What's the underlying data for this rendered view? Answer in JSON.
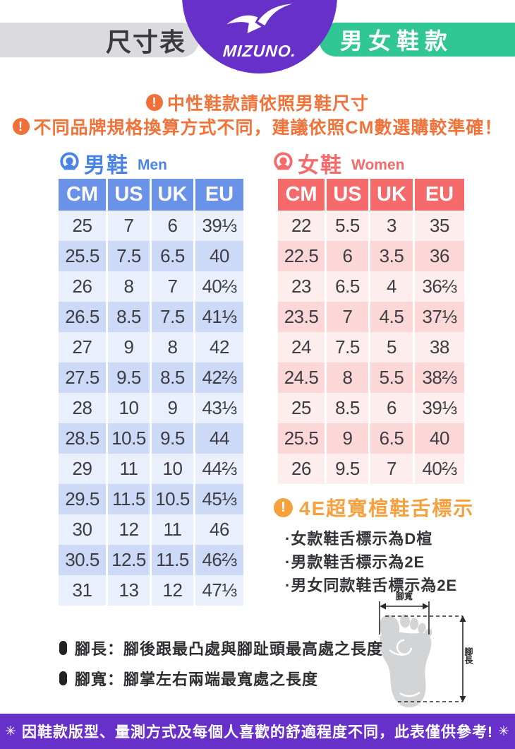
{
  "header": {
    "size_label": "尺寸表",
    "brand": "MIZUNO.",
    "category": "男女鞋款"
  },
  "notices": {
    "icon_glyph": "!",
    "line1": "中性鞋款請依照男鞋尺寸",
    "line2": "不同品牌規格換算方式不同，建議依照CM數選購較準確！"
  },
  "chart_data": [
    {
      "type": "table",
      "title": "男鞋",
      "subtitle": "Men",
      "columns": [
        "CM",
        "US",
        "UK",
        "EU"
      ],
      "rows": [
        [
          "25",
          "7",
          "6",
          "39⅓"
        ],
        [
          "25.5",
          "7.5",
          "6.5",
          "40"
        ],
        [
          "26",
          "8",
          "7",
          "40⅔"
        ],
        [
          "26.5",
          "8.5",
          "7.5",
          "41⅓"
        ],
        [
          "27",
          "9",
          "8",
          "42"
        ],
        [
          "27.5",
          "9.5",
          "8.5",
          "42⅔"
        ],
        [
          "28",
          "10",
          "9",
          "43⅓"
        ],
        [
          "28.5",
          "10.5",
          "9.5",
          "44"
        ],
        [
          "29",
          "11",
          "10",
          "44⅔"
        ],
        [
          "29.5",
          "11.5",
          "10.5",
          "45⅓"
        ],
        [
          "30",
          "12",
          "11",
          "46"
        ],
        [
          "30.5",
          "12.5",
          "11.5",
          "46⅔"
        ],
        [
          "31",
          "13",
          "12",
          "47⅓"
        ]
      ]
    },
    {
      "type": "table",
      "title": "女鞋",
      "subtitle": "Women",
      "columns": [
        "CM",
        "US",
        "UK",
        "EU"
      ],
      "rows": [
        [
          "22",
          "5.5",
          "3",
          "35"
        ],
        [
          "22.5",
          "6",
          "3.5",
          "36"
        ],
        [
          "23",
          "6.5",
          "4",
          "36⅔"
        ],
        [
          "23.5",
          "7",
          "4.5",
          "37⅓"
        ],
        [
          "24",
          "7.5",
          "5",
          "38"
        ],
        [
          "24.5",
          "8",
          "5.5",
          "38⅔"
        ],
        [
          "25",
          "8.5",
          "6",
          "39⅓"
        ],
        [
          "25.5",
          "9",
          "6.5",
          "40"
        ],
        [
          "26",
          "9.5",
          "7",
          "40⅔"
        ]
      ]
    }
  ],
  "width_info": {
    "icon_glyph": "!",
    "title": "4E超寬楦鞋舌標示",
    "items": [
      "·女款鞋舌標示為D楦",
      "·男款鞋舌標示為2E",
      "·男女同款鞋舌標示為2E"
    ]
  },
  "foot_diagram": {
    "width_label": "腳寬",
    "length_label": "腳長"
  },
  "measure_notes": [
    "腳長：腳後跟最凸處與腳趾頭最高處之長度",
    "腳寬：腳掌左右兩端最寬處之長度"
  ],
  "footer": {
    "star": "✳",
    "text": "因鞋款版型、量測方式及每個人喜歡的舒適程度不同，此表僅供參考!"
  },
  "colors": {
    "purple": "#6630c9",
    "teal": "#30c795",
    "gray_pill": "#dbdbdd",
    "orange_warning": "#f2733a",
    "orange_4e": "#f6a13e",
    "men_header_blue": "#6a92e9",
    "men_title_blue": "#4a83e8",
    "men_row_light": "#eaeffc",
    "men_row_dark": "#ccd9f7",
    "women_coral": "#f56a6a",
    "women_row_light": "#fdeeed",
    "women_row_dark": "#fbd8d7"
  }
}
